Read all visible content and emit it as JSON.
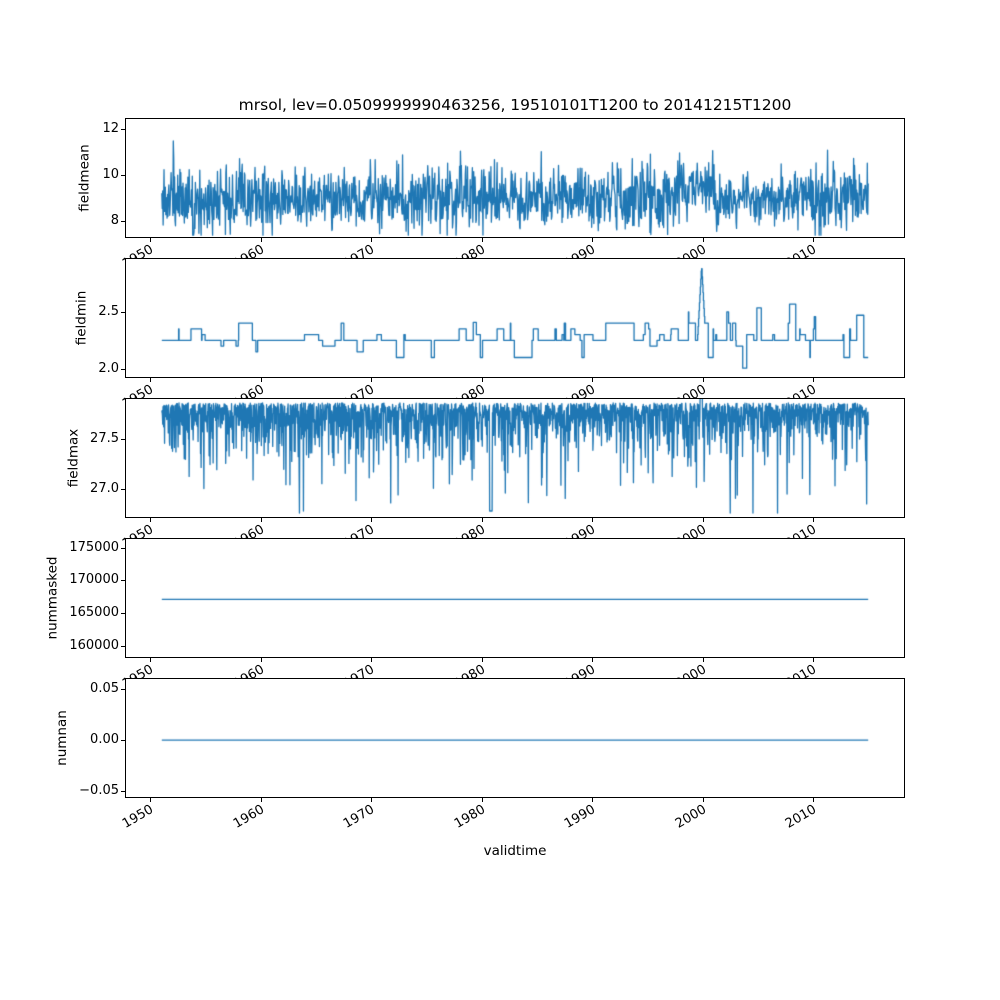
{
  "title": "mrsol, lev=0.0509999990463256, 19510101T1200 to 20141215T1200",
  "xlabel": "validtime",
  "line_color": "#1f77b4",
  "axis_color": "#000000",
  "x_axis": {
    "start": 1951.04,
    "end": 2014.96,
    "lim": [
      1947.8,
      2018.2
    ],
    "tick_values": [
      1950,
      1960,
      1970,
      1980,
      1990,
      2000,
      2010
    ],
    "tick_labels": [
      "1950",
      "1960",
      "1970",
      "1980",
      "1990",
      "2000",
      "2010"
    ]
  },
  "chart_data": [
    {
      "type": "line",
      "ylabel": "fieldmean",
      "ylim": [
        7.3,
        12.45
      ],
      "ytick_values": [
        8,
        10,
        12
      ],
      "ytick_labels": [
        "8",
        "10",
        "12"
      ],
      "approx_range": [
        7.4,
        12.2
      ],
      "approx_mean": 9.0,
      "gen": {
        "kind": "noisy",
        "n": 1600,
        "seed": 11,
        "base": 9.0,
        "a1": 1.3,
        "a2": 0.7,
        "spike_p": 0.006,
        "spike_amp": 1.3,
        "dip_p": 0.004,
        "dip_amp": 0.85,
        "bump_x0": 1997.6,
        "bump_x1": 2001.2,
        "bump_amp": 0.55,
        "clip_lo": 7.38,
        "clip_hi": 12.22
      }
    },
    {
      "type": "line",
      "ylabel": "fieldmin",
      "ylim": [
        1.93,
        2.96
      ],
      "ytick_values": [
        2.0,
        2.5
      ],
      "ytick_labels": [
        "2.0",
        "2.5"
      ],
      "approx_range": [
        1.95,
        2.9
      ],
      "approx_mean": 2.25,
      "gen": {
        "kind": "steps",
        "n": 1600,
        "seed": 22,
        "base": 2.25,
        "step": 0.05,
        "change_p": 0.1,
        "clip_lo": 1.95,
        "clip_hi": 2.9,
        "spike_x0": 1999.5,
        "spike_x1": 2000.25,
        "spike_peak": 2.9
      }
    },
    {
      "type": "line",
      "ylabel": "fieldmax",
      "ylim": [
        26.72,
        27.9
      ],
      "ytick_values": [
        27.0,
        27.5
      ],
      "ytick_labels": [
        "27.0",
        "27.5"
      ],
      "approx_range": [
        26.75,
        27.9
      ],
      "approx_mean": 27.8,
      "gen": {
        "kind": "spikes_down",
        "n": 2300,
        "seed": 33,
        "top": 27.86,
        "rate": 0.16,
        "deep_p": 0.012,
        "deep_add": 0.55,
        "floor": 26.76,
        "up_x0": 1999.75,
        "up_x1": 1999.95,
        "up_v": 27.95,
        "deep_x0": 1980.7,
        "deep_x1": 1980.95,
        "deep_v": 26.78
      }
    },
    {
      "type": "line",
      "ylabel": "nummasked",
      "ylim": [
        158300,
        176300
      ],
      "ytick_values": [
        160000,
        165000,
        170000,
        175000
      ],
      "ytick_labels": [
        "160000",
        "165000",
        "170000",
        "175000"
      ],
      "approx_range": [
        167100,
        167100
      ],
      "approx_mean": 167100,
      "gen": {
        "kind": "const",
        "n": 2,
        "seed": 1,
        "value": 167100
      }
    },
    {
      "type": "line",
      "ylabel": "numnan",
      "ylim": [
        -0.056,
        0.06
      ],
      "ytick_values": [
        -0.05,
        0.0,
        0.05
      ],
      "ytick_labels": [
        "−0.05",
        "0.00",
        "0.05"
      ],
      "approx_range": [
        0,
        0
      ],
      "approx_mean": 0,
      "gen": {
        "kind": "const",
        "n": 2,
        "seed": 1,
        "value": 0
      }
    }
  ]
}
